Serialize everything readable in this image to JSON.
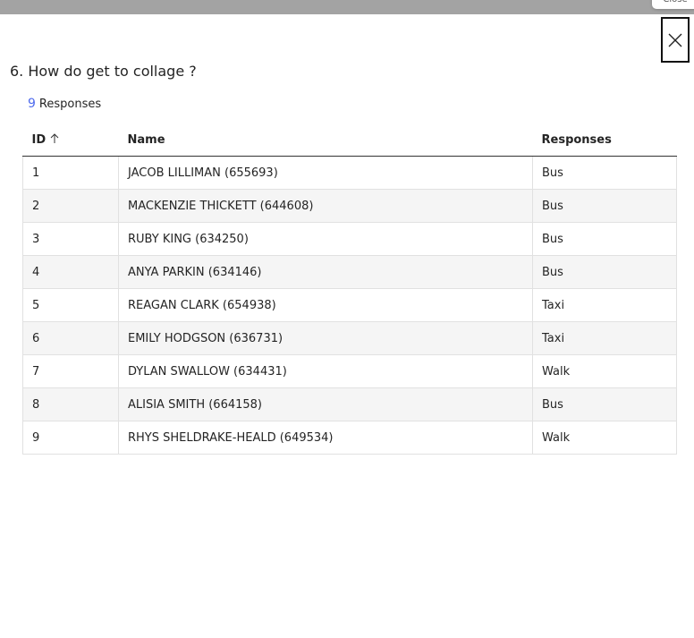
{
  "tooltip": "Close",
  "question": {
    "number": "6.",
    "text": "How do get to collage ?"
  },
  "responses_summary": {
    "count": 9,
    "label": "Responses"
  },
  "table": {
    "headers": [
      "ID",
      "Name",
      "Responses"
    ],
    "rows": [
      [
        1,
        "JACOB LILLIMAN (655693)",
        "Bus"
      ],
      [
        2,
        "MACKENZIE THICKETT (644608)",
        "Bus"
      ],
      [
        3,
        "RUBY KING (634250)",
        "Bus"
      ],
      [
        4,
        "ANYA PARKIN (634146)",
        "Bus"
      ],
      [
        5,
        "REAGAN CLARK (654938)",
        "Taxi"
      ],
      [
        6,
        "EMILY HODGSON (636731)",
        "Taxi"
      ],
      [
        7,
        "DYLAN SWALLOW (634431)",
        "Walk"
      ],
      [
        8,
        "ALISIA SMITH (664158)",
        "Bus"
      ],
      [
        9,
        "RHYS SHELDRAKE-HEALD (649534)",
        "Walk"
      ]
    ]
  }
}
